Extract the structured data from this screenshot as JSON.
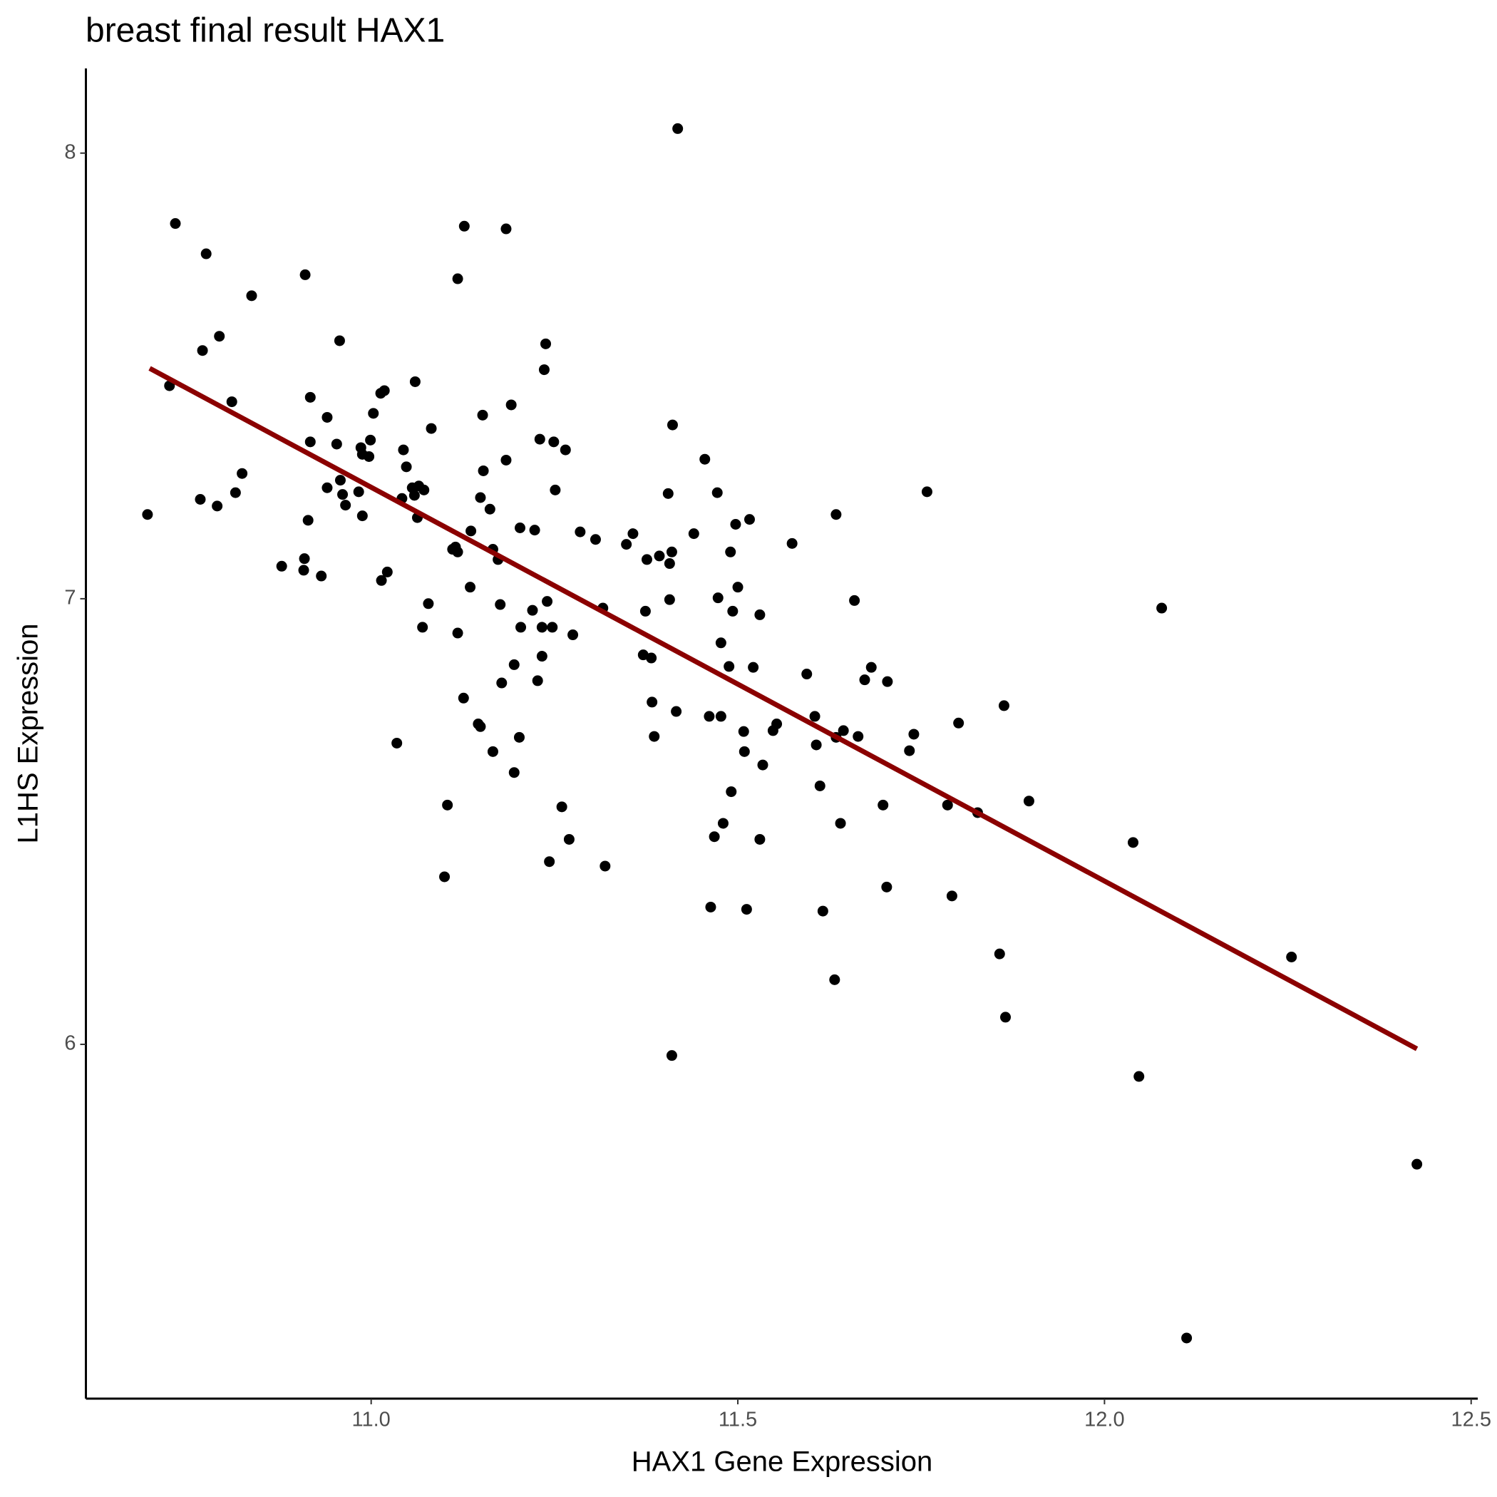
{
  "chart_data": {
    "type": "scatter",
    "title": "breast final result HAX1",
    "x_label": "HAX1 Gene Expression",
    "y_label": "L1HS Expression",
    "xlim": [
      10.611,
      12.509
    ],
    "ylim": [
      5.205,
      8.19
    ],
    "xticks": [
      {
        "value": 11,
        "label": "11.0"
      },
      {
        "value": 11.5,
        "label": "11.5"
      },
      {
        "value": 12,
        "label": "12.0"
      },
      {
        "value": 12.5,
        "label": "12.5"
      }
    ],
    "yticks": [
      6,
      7,
      8
    ],
    "point_color": "#000000",
    "x": [
      10.695,
      10.725,
      10.733,
      10.775,
      10.77,
      10.793,
      10.767,
      10.79,
      10.81,
      10.815,
      10.824,
      10.837,
      10.878,
      10.908,
      10.909,
      10.91,
      10.914,
      10.917,
      10.917,
      10.932,
      10.94,
      10.94,
      10.953,
      10.957,
      10.958,
      10.961,
      10.965,
      10.983,
      10.986,
      10.988,
      10.988,
      10.997,
      10.999,
      11.003,
      11.013,
      11.018,
      11.014,
      11.022,
      11.035,
      11.042,
      11.044,
      11.048,
      11.06,
      11.056,
      11.059,
      11.063,
      11.065,
      11.072,
      11.07,
      11.078,
      11.082,
      11.1,
      11.104,
      11.111,
      11.115,
      11.118,
      11.118,
      11.118,
      11.126,
      11.127,
      11.135,
      11.136,
      11.146,
      11.149,
      11.149,
      11.152,
      11.153,
      11.162,
      11.166,
      11.166,
      11.173,
      11.176,
      11.178,
      11.184,
      11.184,
      11.191,
      11.195,
      11.195,
      11.202,
      11.203,
      11.204,
      11.22,
      11.223,
      11.227,
      11.23,
      11.233,
      11.233,
      11.236,
      11.238,
      11.24,
      11.243,
      11.247,
      11.249,
      11.251,
      11.26,
      11.265,
      11.27,
      11.275,
      11.285,
      11.306,
      11.316,
      11.319,
      11.348,
      11.357,
      11.371,
      11.374,
      11.376,
      11.382,
      11.383,
      11.386,
      11.393,
      11.405,
      11.407,
      11.407,
      11.41,
      11.41,
      11.411,
      11.416,
      11.418,
      11.44,
      11.455,
      11.461,
      11.463,
      11.468,
      11.472,
      11.473,
      11.477,
      11.477,
      11.48,
      11.488,
      11.49,
      11.491,
      11.493,
      11.497,
      11.5,
      11.508,
      11.509,
      11.512,
      11.516,
      11.521,
      11.53,
      11.53,
      11.534,
      11.548,
      11.553,
      11.574,
      11.594,
      11.605,
      11.607,
      11.612,
      11.616,
      11.632,
      11.634,
      11.634,
      11.64,
      11.644,
      11.659,
      11.664,
      11.673,
      11.682,
      11.698,
      11.703,
      11.704,
      11.734,
      11.74,
      11.758,
      11.786,
      11.792,
      11.801,
      11.827,
      11.857,
      11.863,
      11.865,
      11.897,
      12.039,
      12.047,
      12.078,
      12.112,
      12.255,
      12.426
    ],
    "y": [
      7.189,
      7.478,
      7.842,
      7.774,
      7.557,
      7.589,
      7.223,
      7.208,
      7.442,
      7.238,
      7.281,
      7.68,
      7.073,
      7.064,
      7.09,
      7.727,
      7.176,
      7.452,
      7.352,
      7.051,
      7.407,
      7.249,
      7.347,
      7.579,
      7.266,
      7.234,
      7.21,
      7.24,
      7.339,
      7.324,
      7.186,
      7.319,
      7.356,
      7.416,
      7.461,
      7.467,
      7.041,
      7.06,
      6.676,
      7.225,
      7.334,
      7.296,
      7.487,
      7.249,
      7.232,
      7.182,
      7.253,
      7.244,
      6.936,
      6.989,
      7.382,
      6.376,
      6.537,
      7.111,
      7.116,
      7.105,
      6.923,
      7.718,
      6.777,
      7.836,
      7.026,
      7.152,
      6.719,
      6.713,
      7.227,
      7.412,
      7.287,
      7.201,
      6.657,
      7.111,
      7.088,
      6.987,
      6.811,
      7.83,
      7.311,
      7.435,
      6.852,
      6.61,
      6.689,
      7.159,
      6.936,
      6.974,
      7.154,
      6.816,
      7.358,
      6.936,
      6.871,
      7.514,
      7.572,
      6.994,
      6.41,
      6.936,
      7.352,
      7.244,
      6.533,
      7.334,
      6.46,
      6.919,
      7.15,
      7.133,
      6.979,
      6.4,
      7.122,
      7.146,
      6.874,
      6.972,
      7.088,
      6.867,
      6.768,
      6.691,
      7.096,
      7.236,
      7.079,
      6.998,
      5.975,
      7.105,
      7.39,
      6.747,
      8.055,
      7.146,
      7.313,
      6.736,
      6.308,
      6.466,
      7.238,
      7.002,
      6.901,
      6.736,
      6.496,
      6.848,
      7.105,
      6.567,
      6.972,
      7.167,
      7.026,
      6.702,
      6.657,
      6.303,
      7.178,
      6.846,
      6.964,
      6.46,
      6.627,
      6.704,
      6.719,
      7.124,
      6.831,
      6.736,
      6.672,
      6.58,
      6.299,
      6.145,
      7.189,
      6.689,
      6.496,
      6.704,
      6.996,
      6.691,
      6.818,
      6.846,
      6.537,
      6.353,
      6.814,
      6.659,
      6.696,
      7.24,
      6.537,
      6.333,
      6.721,
      6.52,
      6.203,
      6.76,
      6.061,
      6.546,
      6.453,
      5.928,
      6.979,
      5.341,
      6.196,
      5.731
    ],
    "fit": {
      "color": "#8b0000",
      "x": [
        10.698,
        12.426
      ],
      "y": [
        7.517,
        5.99
      ]
    }
  }
}
